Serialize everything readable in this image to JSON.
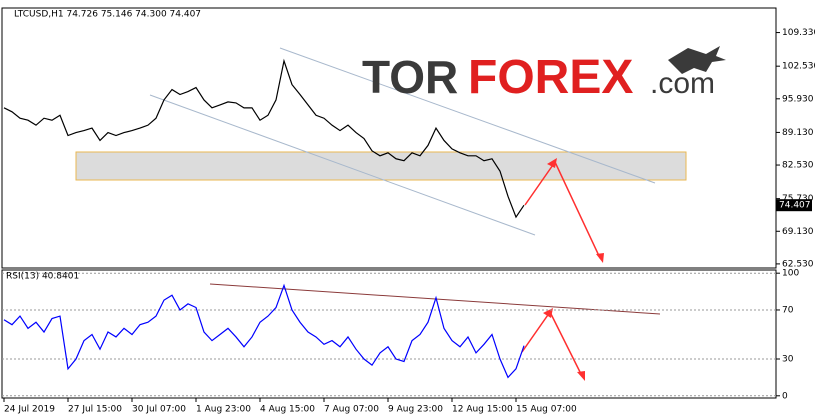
{
  "chart_data": [
    {
      "type": "line",
      "title": "LTCUSD,H1  74.726 75.146 74.300 74.407",
      "categories": [
        "24 Jul 2019",
        null,
        null,
        null,
        null,
        null,
        null,
        null,
        "27 Jul 15:00",
        null,
        null,
        null,
        null,
        null,
        null,
        null,
        "30 Jul 07:00",
        null,
        null,
        null,
        null,
        null,
        null,
        null,
        "1 Aug 23:00",
        null,
        null,
        null,
        null,
        null,
        null,
        null,
        "4 Aug 15:00",
        null,
        null,
        null,
        null,
        null,
        null,
        null,
        "7 Aug 07:00",
        null,
        null,
        null,
        null,
        null,
        null,
        null,
        "9 Aug 23:00",
        null,
        null,
        null,
        null,
        null,
        null,
        null,
        "12 Aug 15:00",
        null,
        null,
        null,
        null,
        null,
        null,
        null,
        "15 Aug 07:00",
        null
      ],
      "series": [
        {
          "name": "LTCUSD",
          "color": "#000000",
          "values": [
            94.1,
            93.3,
            92.0,
            91.6,
            90.6,
            92.0,
            91.6,
            92.6,
            88.5,
            89.1,
            89.5,
            90.0,
            87.5,
            89.1,
            88.5,
            89.1,
            89.5,
            90.0,
            90.6,
            92.0,
            95.7,
            97.8,
            96.8,
            97.4,
            98.2,
            95.7,
            94.1,
            94.7,
            95.3,
            95.1,
            94.1,
            94.1,
            91.6,
            92.6,
            95.7,
            103.6,
            98.8,
            96.8,
            94.7,
            92.6,
            92.0,
            90.6,
            89.5,
            90.6,
            89.1,
            87.9,
            85.4,
            84.4,
            85.0,
            83.8,
            83.4,
            85.0,
            84.4,
            86.5,
            90.0,
            87.5,
            85.8,
            85.0,
            84.4,
            84.4,
            83.4,
            83.8,
            81.3,
            76.2,
            72.0,
            74.407
          ]
        }
      ],
      "last_price_label": "74.407",
      "ylim": [
        61.7,
        114.3
      ],
      "yticks": [
        {
          "value": 62.53,
          "label": "62.530"
        },
        {
          "value": 69.13,
          "label": "69.130"
        },
        {
          "value": 75.73,
          "label": "75.730"
        },
        {
          "value": 82.53,
          "label": "82.530"
        },
        {
          "value": 89.13,
          "label": "89.130"
        },
        {
          "value": 95.93,
          "label": "95.930"
        },
        {
          "value": 102.53,
          "label": "102.530"
        },
        {
          "value": 109.33,
          "label": "109.330"
        }
      ]
    },
    {
      "type": "line",
      "title": "RSI(13) 40.8401",
      "series": [
        {
          "name": "RSI(13)",
          "color": "#0000ff",
          "values": [
            62,
            58,
            65,
            55,
            60,
            52,
            63,
            65,
            22,
            30,
            45,
            50,
            38,
            52,
            48,
            55,
            50,
            58,
            60,
            65,
            78,
            82,
            70,
            75,
            72,
            52,
            45,
            50,
            55,
            48,
            40,
            48,
            60,
            65,
            72,
            90,
            70,
            60,
            52,
            48,
            42,
            45,
            40,
            48,
            38,
            30,
            25,
            35,
            40,
            30,
            28,
            45,
            50,
            60,
            80,
            55,
            45,
            40,
            48,
            35,
            42,
            50,
            30,
            15,
            22,
            40.84
          ]
        }
      ],
      "ylim": [
        -1.8,
        102.6
      ],
      "yticks": [
        0,
        30,
        70,
        100
      ]
    }
  ],
  "logo": {
    "part1": "TOR",
    "part2": "FOREX",
    "part3": ".com"
  }
}
